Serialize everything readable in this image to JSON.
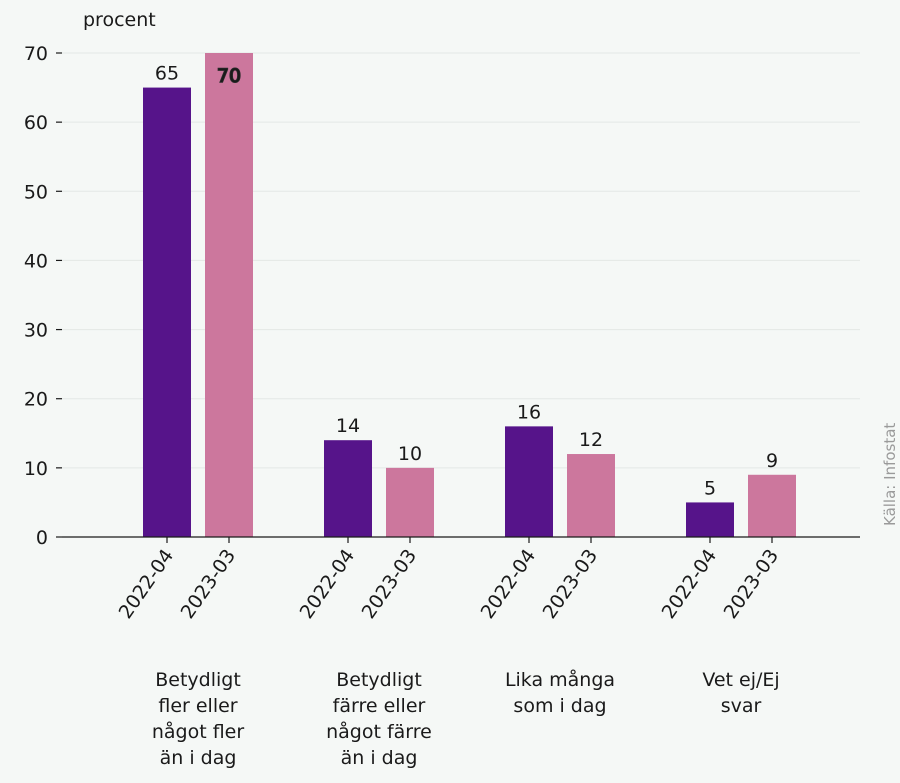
{
  "chart_data": {
    "type": "bar",
    "unit_label": "procent",
    "source": "Källa: Infostat",
    "categories": [
      [
        "Betydligt",
        "fler eller",
        "något fler",
        "än i dag"
      ],
      [
        "Betydligt",
        "färre eller",
        "något färre",
        "än i dag"
      ],
      [
        "Lika många",
        "som i dag"
      ],
      [
        "Vet ej/Ej",
        "svar"
      ]
    ],
    "series": [
      {
        "name": "2022-04",
        "values": [
          65,
          14,
          16,
          5
        ],
        "color": "#56148a"
      },
      {
        "name": "2023-03",
        "values": [
          70,
          10,
          12,
          9
        ],
        "color": "#cc779d"
      }
    ],
    "ylim": [
      0,
      70
    ],
    "yticks": [
      0,
      10,
      20,
      30,
      40,
      50,
      60,
      70
    ],
    "grid": true,
    "legend": "none",
    "colors": {
      "background": "#f5f8f6",
      "grid": "#e3e8e5",
      "axis": "#1a1a1a",
      "text": "#1a1a1a",
      "value_label_on_bar": "#ffffff"
    }
  }
}
